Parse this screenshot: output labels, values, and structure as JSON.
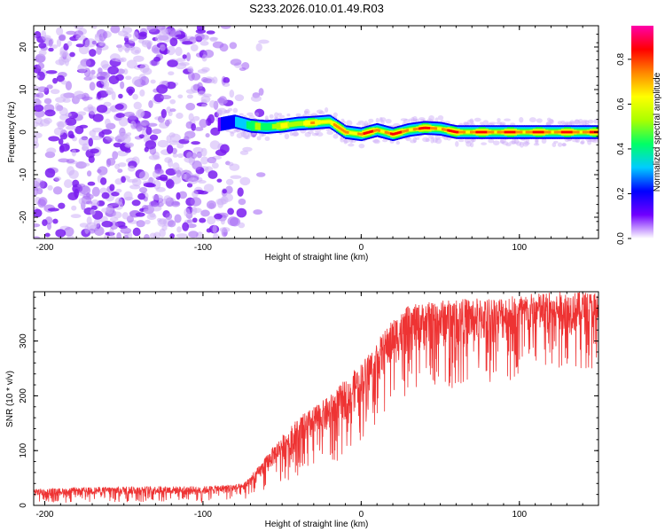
{
  "title": "S233.2026.010.01.49.R03",
  "chart_data": [
    {
      "type": "heatmap",
      "xlabel": "Height of straight line (km)",
      "ylabel": "Frequency (Hz)",
      "xlim": [
        -207,
        150
      ],
      "ylim": [
        -25,
        25
      ],
      "xticks": [
        -200,
        -100,
        0,
        100
      ],
      "xtick_labels": [
        "-200",
        "-100",
        "0",
        "100"
      ],
      "yticks": [
        -20,
        -10,
        0,
        10,
        20
      ],
      "ytick_labels": [
        "-20",
        "-10",
        "0",
        "10",
        "20"
      ],
      "colorbar": {
        "label": "Normalized spectral amplitude",
        "range": [
          0,
          0.95
        ],
        "ticks": [
          0,
          0.2,
          0.4,
          0.6,
          0.8
        ],
        "tick_labels": [
          "0.0",
          "0.2",
          "0.4",
          "0.6",
          "0.8"
        ],
        "colors": [
          "#ffffff",
          "#7000ff",
          "#0000ff",
          "#00ccff",
          "#00ff66",
          "#aaff00",
          "#ffff00",
          "#ff8800",
          "#ff0000",
          "#ff00aa"
        ]
      },
      "noise_region_x": [
        -207,
        -75
      ],
      "signal_track": {
        "x": [
          -90,
          -80,
          -70,
          -60,
          -50,
          -40,
          -30,
          -20,
          -10,
          0,
          10,
          20,
          30,
          40,
          50,
          60,
          80,
          100,
          120,
          140,
          150
        ],
        "freq": [
          1.8,
          2.5,
          1.5,
          1.2,
          1.5,
          2.0,
          2.2,
          2.5,
          0.0,
          -0.5,
          0.5,
          -0.5,
          0.5,
          1.0,
          0.8,
          0.0,
          0.0,
          0.0,
          0.0,
          0.0,
          0.0
        ],
        "amplitude": [
          0.15,
          0.3,
          0.45,
          0.55,
          0.6,
          0.65,
          0.7,
          0.75,
          0.8,
          0.85,
          0.85,
          0.88,
          0.9,
          0.9,
          0.9,
          0.92,
          0.93,
          0.93,
          0.9,
          0.85,
          0.85
        ]
      }
    },
    {
      "type": "line",
      "xlabel": "Height of straight line (km)",
      "ylabel": "SNR (10 * v/v)",
      "xlim": [
        -207,
        150
      ],
      "ylim": [
        0,
        390
      ],
      "xticks": [
        -200,
        -100,
        0,
        100
      ],
      "xtick_labels": [
        "-200",
        "-100",
        "0",
        "100"
      ],
      "yticks": [
        0,
        100,
        200,
        300
      ],
      "ytick_labels": [
        "0",
        "100",
        "200",
        "300"
      ],
      "color": "#ee3333",
      "series": [
        {
          "name": "SNR",
          "envelope_x": [
            -207,
            -150,
            -100,
            -75,
            -65,
            -55,
            -40,
            -20,
            -10,
            0,
            10,
            20,
            30,
            50,
            80,
            100,
            120,
            150
          ],
          "envelope_lo": [
            5,
            5,
            5,
            10,
            20,
            40,
            50,
            70,
            90,
            120,
            150,
            180,
            200,
            210,
            220,
            230,
            240,
            250
          ],
          "envelope_hi": [
            30,
            35,
            35,
            40,
            70,
            110,
            160,
            200,
            230,
            260,
            300,
            340,
            365,
            375,
            380,
            385,
            390,
            390
          ]
        }
      ]
    }
  ]
}
